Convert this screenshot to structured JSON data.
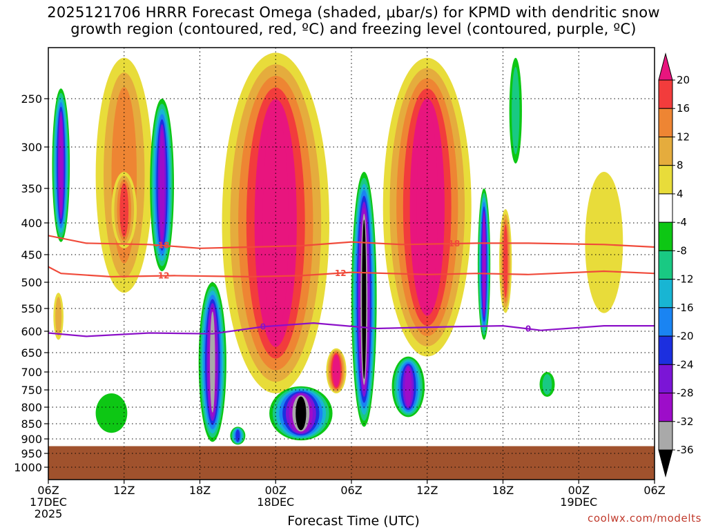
{
  "title_line1": "2025121706 HRRR Forecast Omega (shaded, μbar/s) for KPMD with dendritic snow",
  "title_line2": "growth region (contoured, red, ºC) and freezing level (contoured, purple, ºC)",
  "credit": "coolwx.com/modelts",
  "chart_data": {
    "type": "heatmap",
    "xlabel": "Forecast Time (UTC)",
    "ylabel": "",
    "x_ticks": [
      {
        "label": "06Z",
        "date": "17DEC",
        "year": "2025",
        "hour": 0
      },
      {
        "label": "12Z",
        "hour": 6
      },
      {
        "label": "18Z",
        "hour": 12
      },
      {
        "label": "00Z",
        "date": "18DEC",
        "hour": 18
      },
      {
        "label": "06Z",
        "hour": 24
      },
      {
        "label": "12Z",
        "hour": 30
      },
      {
        "label": "18Z",
        "hour": 36
      },
      {
        "label": "00Z",
        "date": "19DEC",
        "hour": 42
      },
      {
        "label": "06Z",
        "hour": 48
      }
    ],
    "y_ticks": [
      250,
      300,
      350,
      400,
      450,
      500,
      550,
      600,
      650,
      700,
      750,
      800,
      850,
      900,
      950,
      1000
    ],
    "ylim": [
      200,
      1020
    ],
    "grid": "dotted",
    "ground_level_hpa": 925,
    "ground_color": "#a0522d",
    "colorbar": {
      "labels": [
        "20",
        "16",
        "12",
        "8",
        "4",
        "-4",
        "-8",
        "-12",
        "-16",
        "-20",
        "-24",
        "-28",
        "-32",
        "-36"
      ],
      "colors": [
        "#e8157e",
        "#f23c3c",
        "#ee8533",
        "#e5ac3d",
        "#e8dc3a",
        "#ffffff",
        "#0dc714",
        "#19c983",
        "#18b5d3",
        "#1a84f2",
        "#1c2fdf",
        "#7b15d6",
        "#9d0dc9",
        "#a9a9a9",
        "#000000"
      ]
    },
    "dgz_contours": [
      {
        "label": "-18",
        "color": "#f04a3a",
        "points": [
          [
            0,
            420
          ],
          [
            3,
            432
          ],
          [
            8,
            434
          ],
          [
            12,
            440
          ],
          [
            16,
            438
          ],
          [
            20,
            436
          ],
          [
            24,
            430
          ],
          [
            28,
            434
          ],
          [
            34,
            432
          ],
          [
            38,
            432
          ],
          [
            44,
            434
          ],
          [
            48,
            438
          ]
        ]
      },
      {
        "label": "-12",
        "color": "#f04a3a",
        "points": [
          [
            0,
            472
          ],
          [
            1,
            484
          ],
          [
            5,
            490
          ],
          [
            10,
            488
          ],
          [
            16,
            490
          ],
          [
            20,
            488
          ],
          [
            24,
            482
          ],
          [
            30,
            486
          ],
          [
            34,
            484
          ],
          [
            38,
            486
          ],
          [
            44,
            480
          ],
          [
            48,
            484
          ]
        ]
      }
    ],
    "freezing_level": {
      "label": "0",
      "color": "#8b10c8",
      "points": [
        [
          0,
          604
        ],
        [
          3,
          612
        ],
        [
          8,
          604
        ],
        [
          13,
          606
        ],
        [
          17,
          590
        ],
        [
          21,
          582
        ],
        [
          26,
          594
        ],
        [
          32,
          590
        ],
        [
          36,
          588
        ],
        [
          39,
          598
        ],
        [
          44,
          588
        ],
        [
          48,
          588
        ]
      ]
    },
    "label_positions": {
      "-18": [
        9,
        32
      ],
      "-12": [
        9,
        23
      ],
      "0": [
        17,
        38
      ]
    },
    "blobs": [
      {
        "hour": 1.0,
        "top": 240,
        "bottom": 430,
        "width": 1.4,
        "peak": -28
      },
      {
        "hour": 0.8,
        "top": 520,
        "bottom": 620,
        "width": 0.8,
        "peak": 8
      },
      {
        "hour": 6,
        "top": 210,
        "bottom": 520,
        "width": 4.5,
        "peak": 12
      },
      {
        "hour": 6,
        "top": 330,
        "bottom": 440,
        "width": 2.0,
        "peak": 16
      },
      {
        "hour": 9,
        "top": 250,
        "bottom": 480,
        "width": 1.9,
        "peak": -28
      },
      {
        "hour": 13,
        "top": 500,
        "bottom": 910,
        "width": 2.2,
        "peak": -32
      },
      {
        "hour": 18,
        "top": 205,
        "bottom": 760,
        "width": 8.5,
        "peak": 20
      },
      {
        "hour": 20,
        "top": 740,
        "bottom": 905,
        "width": 5.0,
        "peak": -36
      },
      {
        "hour": 25,
        "top": 330,
        "bottom": 860,
        "width": 2.0,
        "peak": -36
      },
      {
        "hour": 22.8,
        "top": 640,
        "bottom": 760,
        "width": 1.6,
        "peak": 20
      },
      {
        "hour": 30,
        "top": 210,
        "bottom": 660,
        "width": 7.0,
        "peak": 20
      },
      {
        "hour": 28.5,
        "top": 660,
        "bottom": 830,
        "width": 2.6,
        "peak": -28
      },
      {
        "hour": 34.5,
        "top": 350,
        "bottom": 620,
        "width": 1.0,
        "peak": -28
      },
      {
        "hour": 36.2,
        "top": 380,
        "bottom": 560,
        "width": 1.0,
        "peak": 16
      },
      {
        "hour": 37,
        "top": 210,
        "bottom": 320,
        "width": 1.0,
        "peak": -8
      },
      {
        "hour": 44,
        "top": 330,
        "bottom": 560,
        "width": 3.0,
        "peak": 4
      },
      {
        "hour": 15,
        "top": 860,
        "bottom": 920,
        "width": 1.2,
        "peak": -20
      },
      {
        "hour": 5,
        "top": 760,
        "bottom": 880,
        "width": 2.5,
        "peak": -4
      },
      {
        "hour": 39.5,
        "top": 700,
        "bottom": 770,
        "width": 1.2,
        "peak": -8
      }
    ]
  }
}
